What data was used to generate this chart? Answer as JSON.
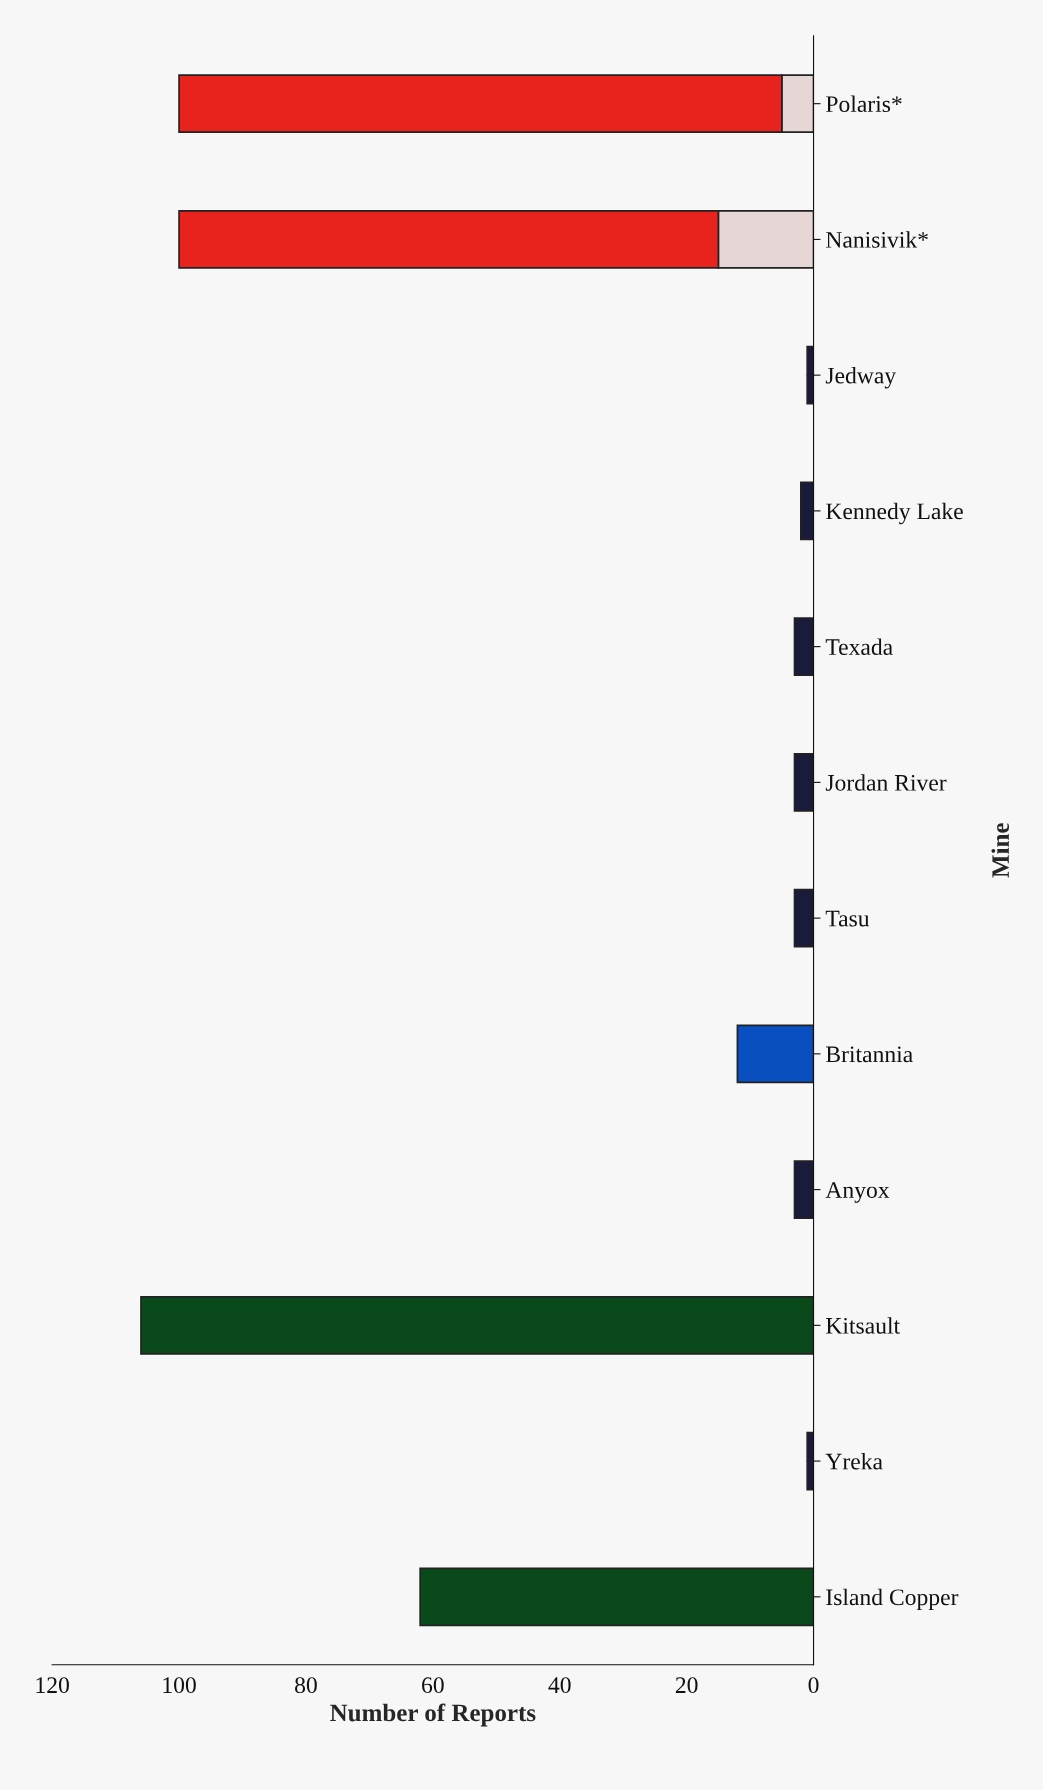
{
  "chart_data": {
    "type": "bar",
    "orientation": "horizontal",
    "stacked": true,
    "xlabel": "Number of Reports",
    "ylabel": "Mine",
    "categories": [
      "Polaris*",
      "Nanisivik*",
      "Jedway",
      "Kennedy Lake",
      "Texada",
      "Jordan River",
      "Tasu",
      "Britannia",
      "Anyox",
      "Kitsault",
      "Yreka",
      "Island Copper"
    ],
    "series": [
      {
        "color": "#e6d6d6",
        "values": [
          5,
          15,
          null,
          null,
          null,
          null,
          null,
          null,
          null,
          null,
          null,
          null
        ]
      },
      {
        "colors": [
          "#e8231e",
          "#e8231e",
          "#1a1a3a",
          "#1a1a3a",
          "#1a1a3a",
          "#1a1a3a",
          "#1a1a3a",
          "#0a4fc0",
          "#1a1a3a",
          "#0a4a1a",
          "#1a1a3a",
          "#0a4a1a"
        ],
        "values": [
          95,
          85,
          1,
          2,
          3,
          3,
          3,
          12,
          3,
          106,
          1,
          62
        ]
      }
    ],
    "xlim": [
      120,
      0
    ],
    "xticks": [
      0,
      20,
      40,
      60,
      80,
      100,
      120
    ],
    "grid": false,
    "legend": false
  }
}
